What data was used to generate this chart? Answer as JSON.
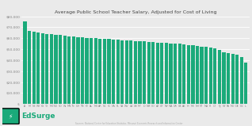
{
  "title": "Average Public School Teacher Salary, Adjusted for Cost of Living",
  "bar_color": "#1aaa7a",
  "background_color": "#eaeaea",
  "plot_bg_color": "#eaeaea",
  "grid_color": "#ffffff",
  "ylabel": "",
  "xlabel": "",
  "ylim": [
    0,
    80000
  ],
  "yticks": [
    0,
    10000,
    20000,
    30000,
    40000,
    50000,
    60000,
    70000,
    80000
  ],
  "ytick_labels": [
    "$-",
    "$10,000",
    "$20,000",
    "$30,000",
    "$40,000",
    "$50,000",
    "$60,000",
    "$70,000",
    "$80,000"
  ],
  "source_text": "Sources: National Center for Education Statistics, Missouri Economic Research and Information Center",
  "edsurge_color": "#1aaa7a",
  "edsurge_text_color": "#1aaa7a",
  "title_color": "#444444",
  "tick_color": "#888888",
  "states": [
    "IA",
    "MI",
    "NE",
    "WY",
    "KS",
    "TX",
    "MO",
    "ND",
    "SD",
    "WI",
    "MN",
    "IN",
    "OH",
    "TN",
    "KY",
    "AL",
    "MS",
    "AR",
    "NC",
    "SC",
    "GA",
    "FL",
    "VA",
    "WV",
    "LA",
    "OK",
    "MT",
    "ID",
    "NM",
    "CO",
    "AZ",
    "UT",
    "NV",
    "WA",
    "OR",
    "CA",
    "AK",
    "HI",
    "ME",
    "NH",
    "VT",
    "MA",
    "RI",
    "CT",
    "NJ",
    "NY",
    "PA",
    "MD",
    "DE",
    "DC",
    "IL"
  ],
  "values": [
    75500,
    66500,
    65800,
    65200,
    64500,
    64000,
    63500,
    63200,
    62800,
    62500,
    62000,
    61500,
    61000,
    60800,
    60500,
    60200,
    60000,
    59700,
    59400,
    59200,
    58800,
    58600,
    58300,
    58000,
    57800,
    57500,
    57200,
    57000,
    56800,
    56500,
    56200,
    56000,
    55800,
    55500,
    55200,
    55000,
    54500,
    54000,
    53500,
    53000,
    52500,
    52000,
    51500,
    50500,
    49000,
    47500,
    46500,
    45500,
    45000,
    43000,
    37500
  ]
}
